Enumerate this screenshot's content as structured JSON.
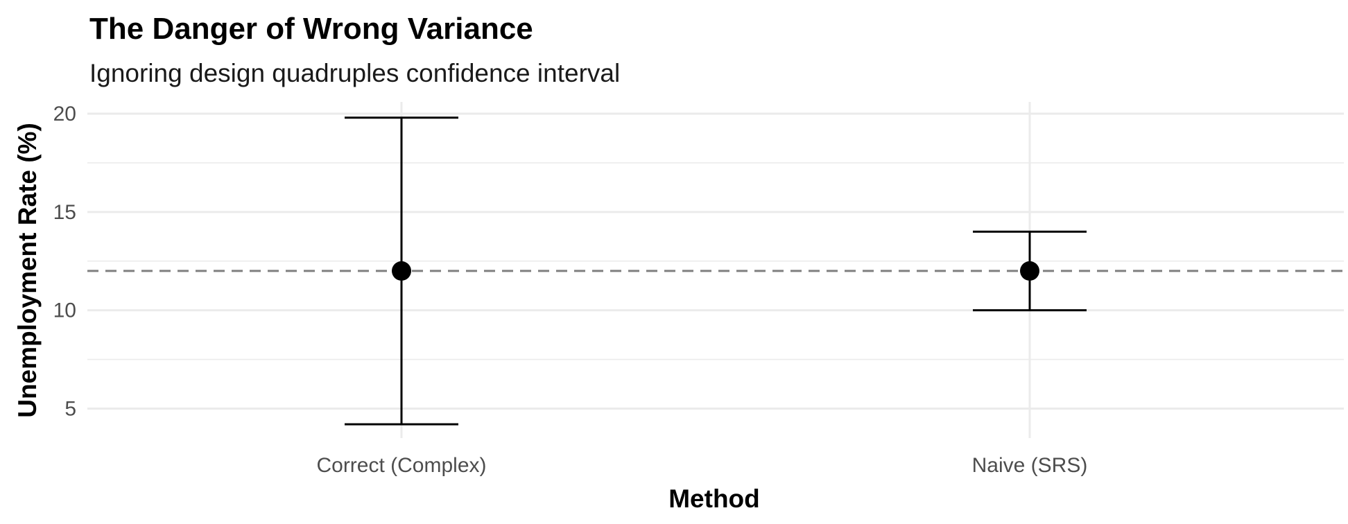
{
  "chart_data": {
    "type": "errorbar",
    "title": "The Danger of Wrong Variance",
    "subtitle": "Ignoring design quadruples confidence interval",
    "xlabel": "Method",
    "ylabel": "Unemployment Rate (%)",
    "categories": [
      "Correct (Complex)",
      "Naive (SRS)"
    ],
    "estimates": [
      12.0,
      12.0
    ],
    "lower": [
      4.2,
      10.0
    ],
    "upper": [
      19.8,
      14.0
    ],
    "reference_line": {
      "y": 12.0,
      "style": "dashed",
      "color": "#7f7f7f"
    },
    "ylim": [
      3.5,
      20.6
    ],
    "yticks": [
      5,
      10,
      15,
      20
    ],
    "grid": true,
    "legend": "none",
    "colors": {
      "point": "#000000",
      "errorbar": "#000000",
      "grid": "#ebebeb",
      "reference": "#7f7f7f"
    }
  }
}
